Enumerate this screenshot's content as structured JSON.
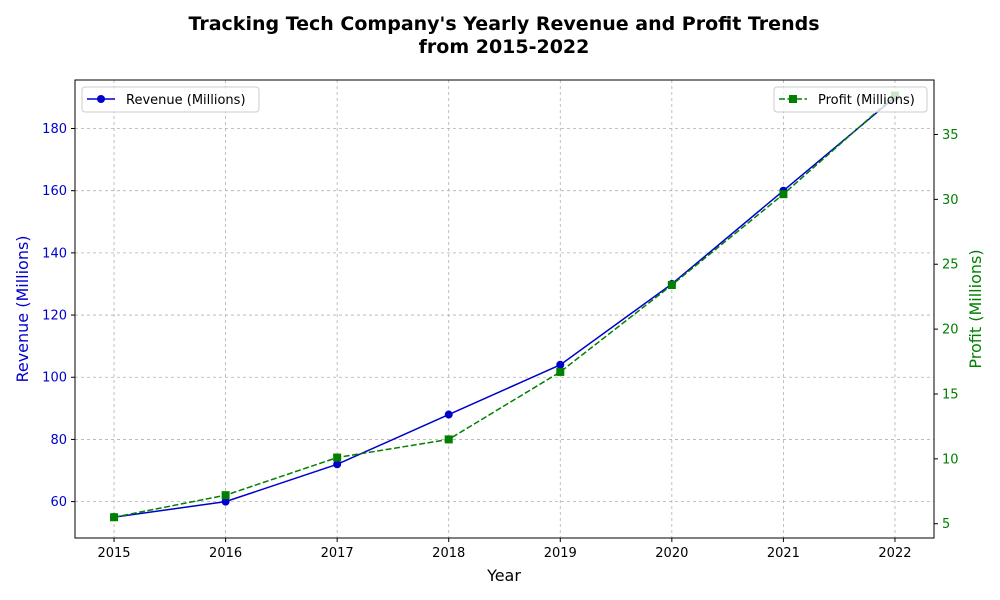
{
  "chart_data": {
    "type": "line",
    "title_line1": "Tracking Tech Company's Yearly Revenue and Profit Trends",
    "title_line2": "from 2015-2022",
    "xlabel": "Year",
    "ylabel_left": "Revenue (Millions)",
    "ylabel_right": "Profit (Millions)",
    "grid": true,
    "x": [
      2015,
      2016,
      2017,
      2018,
      2019,
      2020,
      2021,
      2022
    ],
    "x_tick_labels": [
      "2015",
      "2016",
      "2017",
      "2018",
      "2019",
      "2020",
      "2021",
      "2022"
    ],
    "xlim": [
      2014.65,
      2022.35
    ],
    "ylim_left": [
      48.3,
      195.6
    ],
    "ylim_right": [
      3.9,
      39.2
    ],
    "y_ticks_left": [
      60,
      80,
      100,
      120,
      140,
      160,
      180
    ],
    "y_ticks_right": [
      5,
      10,
      15,
      20,
      25,
      30,
      35
    ],
    "series": [
      {
        "name": "Revenue (Millions)",
        "axis": "left",
        "color": "#0000cc",
        "line_style": "solid",
        "marker": "circle",
        "values": [
          55,
          60,
          72,
          88,
          104,
          130,
          160,
          190
        ]
      },
      {
        "name": "Profit (Millions)",
        "axis": "right",
        "color": "#008000",
        "line_style": "dashed",
        "marker": "square",
        "values": [
          5.5,
          7.2,
          10.1,
          11.5,
          16.7,
          23.4,
          30.4,
          38.0
        ]
      }
    ],
    "legend_left_position": "upper-left",
    "legend_right_position": "upper-right"
  }
}
